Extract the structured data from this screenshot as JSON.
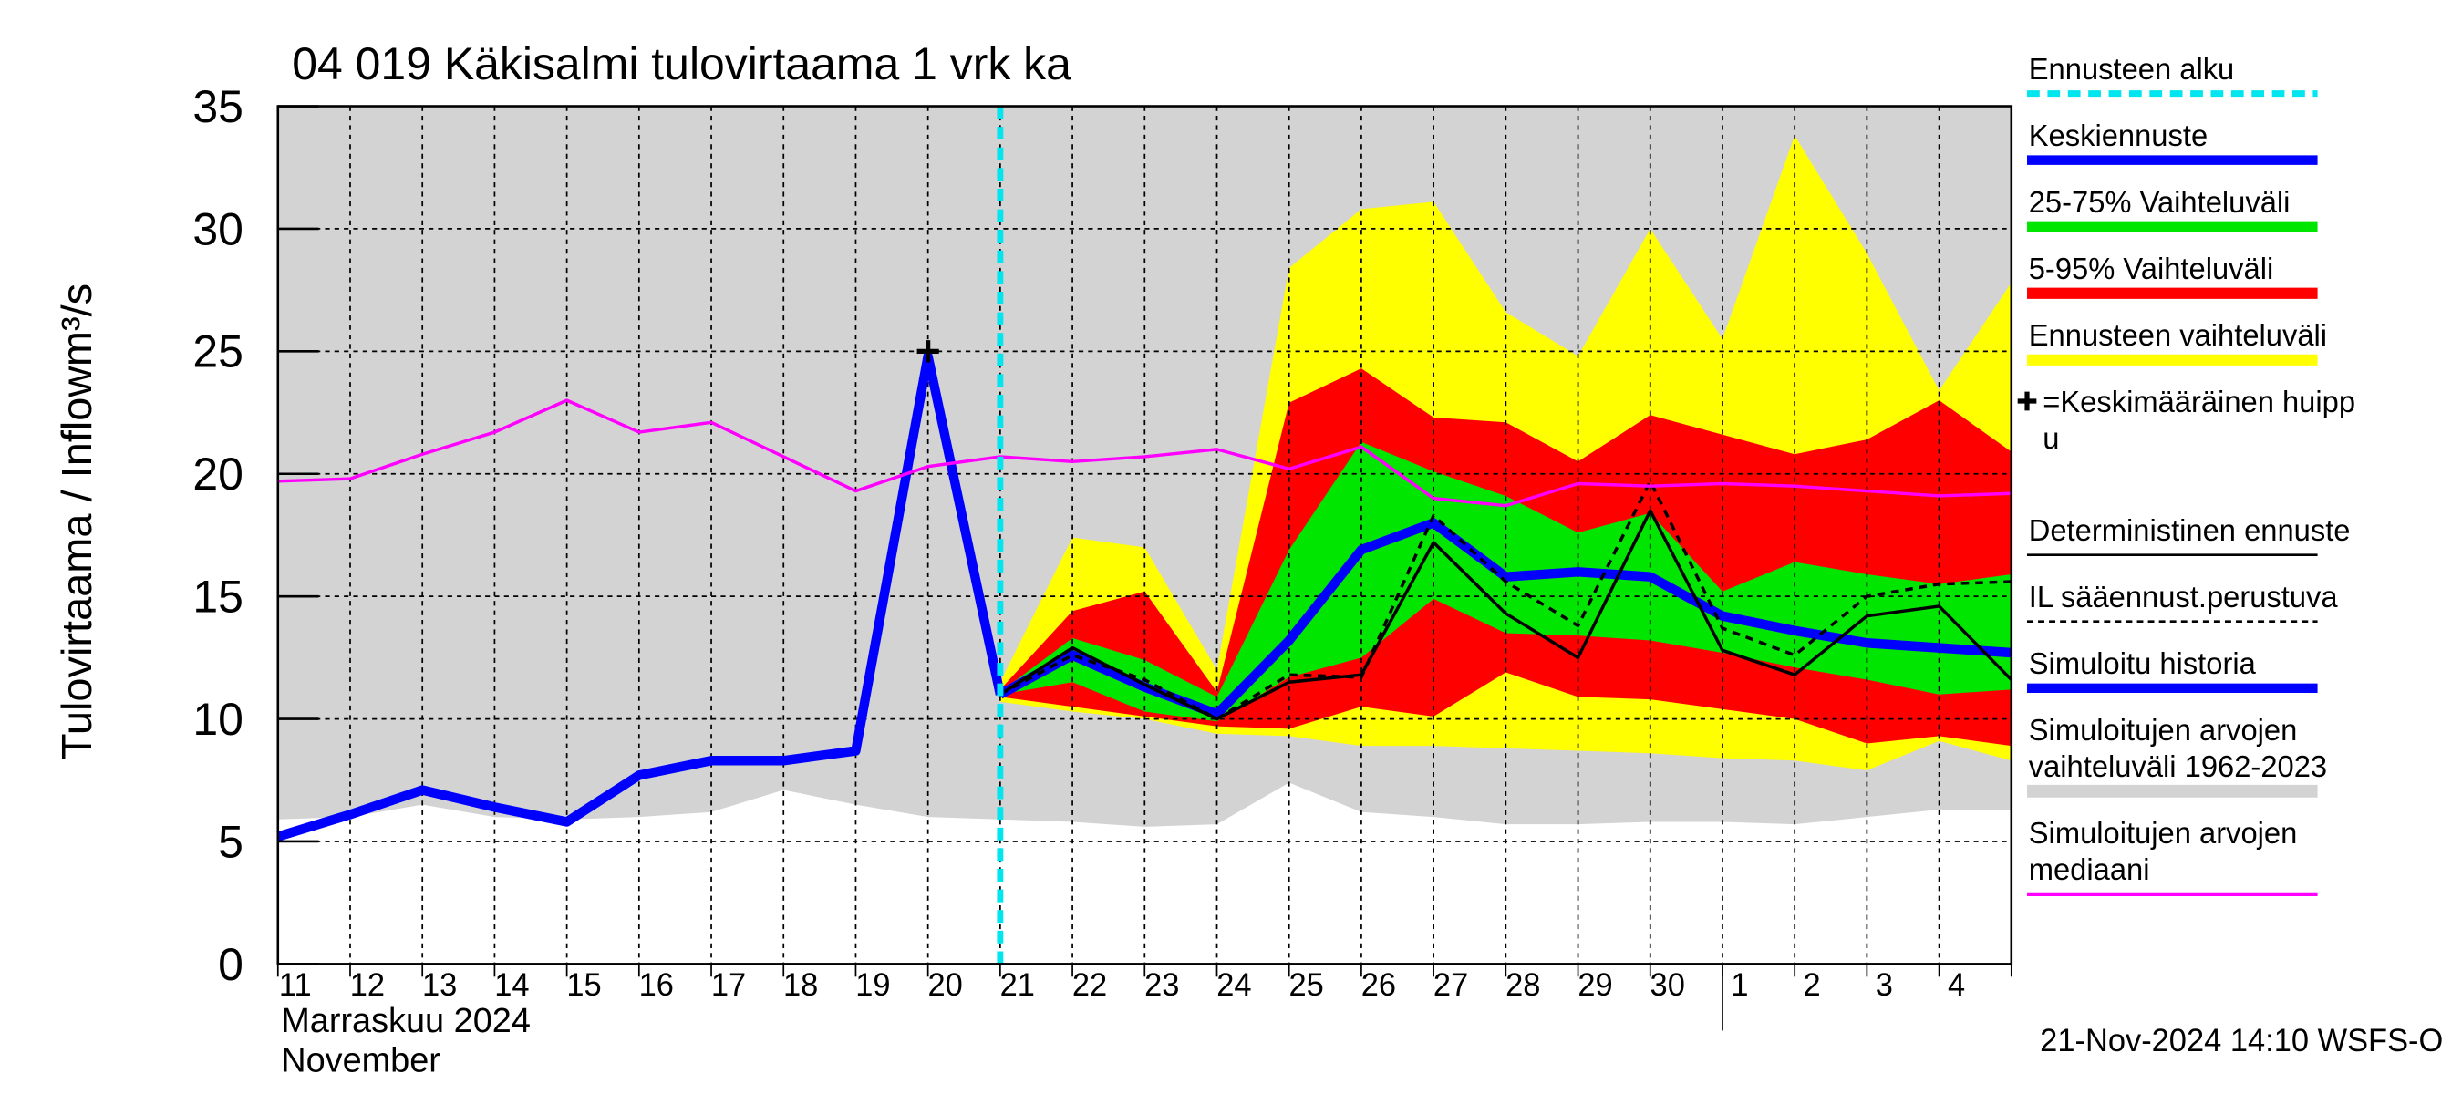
{
  "chart_data": {
    "type": "band_line",
    "title": "04 019 Käkisalmi tulovirtaama 1 vrk ka",
    "ylabel": "Tulovirtaama / Inflow",
    "yunit": "m³/s",
    "month_label": "Marraskuu 2024",
    "month_label_en": "November",
    "footer": "21-Nov-2024 14:10 WSFS-O",
    "categories": [
      "11",
      "12",
      "13",
      "14",
      "15",
      "16",
      "17",
      "18",
      "19",
      "20",
      "21",
      "22",
      "23",
      "24",
      "25",
      "26",
      "27",
      "28",
      "29",
      "30",
      "1",
      "2",
      "3",
      "4",
      null
    ],
    "month_start": "1",
    "ylim": [
      0,
      35
    ],
    "yticks": [
      0,
      5,
      10,
      15,
      20,
      25,
      30,
      35
    ],
    "grid": true,
    "series": [
      {
        "name": "Ennusteen alku",
        "color": "#00e5ee",
        "kind": "vline",
        "at": "21"
      },
      {
        "name": "Keskiennuste",
        "color": "#0000ff",
        "kind": "line",
        "width": 6,
        "values": [
          null,
          null,
          null,
          null,
          null,
          null,
          null,
          null,
          null,
          null,
          11.0,
          12.6,
          11.3,
          10.2,
          13.2,
          16.9,
          18.0,
          15.8,
          16.0,
          15.8,
          14.2,
          13.6,
          13.1,
          12.9,
          12.7
        ]
      },
      {
        "name": "25-75% Vaihteluväli",
        "color": "#00e600",
        "kind": "band",
        "upper": [
          null,
          null,
          null,
          null,
          null,
          null,
          null,
          null,
          null,
          null,
          11.1,
          13.3,
          12.4,
          10.9,
          16.9,
          21.3,
          20.1,
          19.1,
          17.6,
          18.4,
          15.2,
          16.4,
          15.9,
          15.5,
          15.9
        ],
        "lower": [
          null,
          null,
          null,
          null,
          null,
          null,
          null,
          null,
          null,
          null,
          11.0,
          11.5,
          10.3,
          9.9,
          11.7,
          12.5,
          14.9,
          13.5,
          13.4,
          13.2,
          12.7,
          12.1,
          11.6,
          11.0,
          11.2
        ]
      },
      {
        "name": "5-95% Vaihteluväli",
        "color": "#ff0000",
        "kind": "band",
        "upper": [
          null,
          null,
          null,
          null,
          null,
          null,
          null,
          null,
          null,
          null,
          11.2,
          14.4,
          15.2,
          11.1,
          22.9,
          24.3,
          22.3,
          22.1,
          20.5,
          22.4,
          21.6,
          20.8,
          21.4,
          23.0,
          20.9
        ],
        "lower": [
          null,
          null,
          null,
          null,
          null,
          null,
          null,
          null,
          null,
          null,
          10.9,
          10.5,
          10.1,
          9.7,
          9.6,
          10.5,
          10.1,
          11.9,
          10.9,
          10.8,
          10.4,
          10.0,
          9.0,
          9.3,
          8.9
        ]
      },
      {
        "name": "Ennusteen vaihteluväli",
        "color": "#ffff00",
        "kind": "band",
        "upper": [
          null,
          null,
          null,
          null,
          null,
          null,
          null,
          null,
          null,
          null,
          11.5,
          17.4,
          17.0,
          12.0,
          28.4,
          30.8,
          31.1,
          26.6,
          24.8,
          30.0,
          25.5,
          33.8,
          29.0,
          23.4,
          27.8
        ],
        "lower": [
          null,
          null,
          null,
          null,
          null,
          null,
          null,
          null,
          null,
          null,
          10.7,
          10.3,
          10.0,
          9.4,
          9.3,
          8.9,
          8.9,
          8.8,
          8.7,
          8.6,
          8.4,
          8.3,
          7.9,
          9.1,
          8.3
        ]
      },
      {
        "name": "=Keskimääräinen huipp\nu",
        "color": "#000000",
        "kind": "marker",
        "values": [
          null,
          null,
          null,
          null,
          null,
          null,
          null,
          null,
          null,
          25.0,
          null,
          null,
          null,
          null,
          null,
          null,
          null,
          null,
          null,
          null,
          null,
          null,
          null,
          null,
          null
        ]
      },
      {
        "name": "Deterministinen ennuste",
        "color": "#000000",
        "kind": "line",
        "width": 2,
        "values": [
          null,
          null,
          null,
          null,
          null,
          null,
          null,
          null,
          null,
          null,
          11.0,
          12.9,
          11.4,
          10.0,
          11.5,
          11.8,
          17.2,
          14.3,
          12.5,
          18.5,
          12.8,
          11.8,
          14.2,
          14.6,
          11.6
        ]
      },
      {
        "name": "IL sääennust.perustuva",
        "color": "#000000",
        "kind": "line",
        "width": 2,
        "dashed": true,
        "values": [
          null,
          null,
          null,
          null,
          null,
          null,
          null,
          null,
          null,
          null,
          11.0,
          12.6,
          11.6,
          10.0,
          11.8,
          11.7,
          18.3,
          15.6,
          13.8,
          19.7,
          13.7,
          12.6,
          15.0,
          15.5,
          15.6
        ]
      },
      {
        "name": "Simuloitu historia",
        "color": "#0000ff",
        "kind": "line",
        "width": 6,
        "values": [
          5.2,
          6.1,
          7.1,
          6.4,
          5.8,
          7.7,
          8.3,
          8.3,
          8.7,
          24.8,
          11.0,
          null,
          null,
          null,
          null,
          null,
          null,
          null,
          null,
          null,
          null,
          null,
          null,
          null,
          null
        ]
      },
      {
        "name": "Simuloitujen arvojen\nvaihteluväli 1962-2023",
        "color": "#d3d3d3",
        "kind": "band",
        "upper": [
          35,
          35,
          35,
          35,
          35,
          35,
          35,
          35,
          35,
          35,
          35,
          35,
          35,
          35,
          35,
          35,
          35,
          35,
          35,
          35,
          35,
          35,
          35,
          35,
          35
        ],
        "lower": [
          5.9,
          6.0,
          6.5,
          6.0,
          5.9,
          6.0,
          6.2,
          7.1,
          6.5,
          6.0,
          5.9,
          5.8,
          5.6,
          5.7,
          7.4,
          6.2,
          6.0,
          5.7,
          5.7,
          5.8,
          5.8,
          5.7,
          6.0,
          6.3,
          6.3
        ]
      },
      {
        "name": "Simuloitujen arvojen\nmediaani",
        "color": "#ff00ff",
        "kind": "line",
        "width": 2,
        "values": [
          19.7,
          19.8,
          20.8,
          21.7,
          23.0,
          21.7,
          22.1,
          20.7,
          19.3,
          20.3,
          20.7,
          20.5,
          20.7,
          21.0,
          20.2,
          21.1,
          19.0,
          18.7,
          19.6,
          19.5,
          19.6,
          19.5,
          19.3,
          19.1,
          19.2
        ]
      }
    ]
  }
}
